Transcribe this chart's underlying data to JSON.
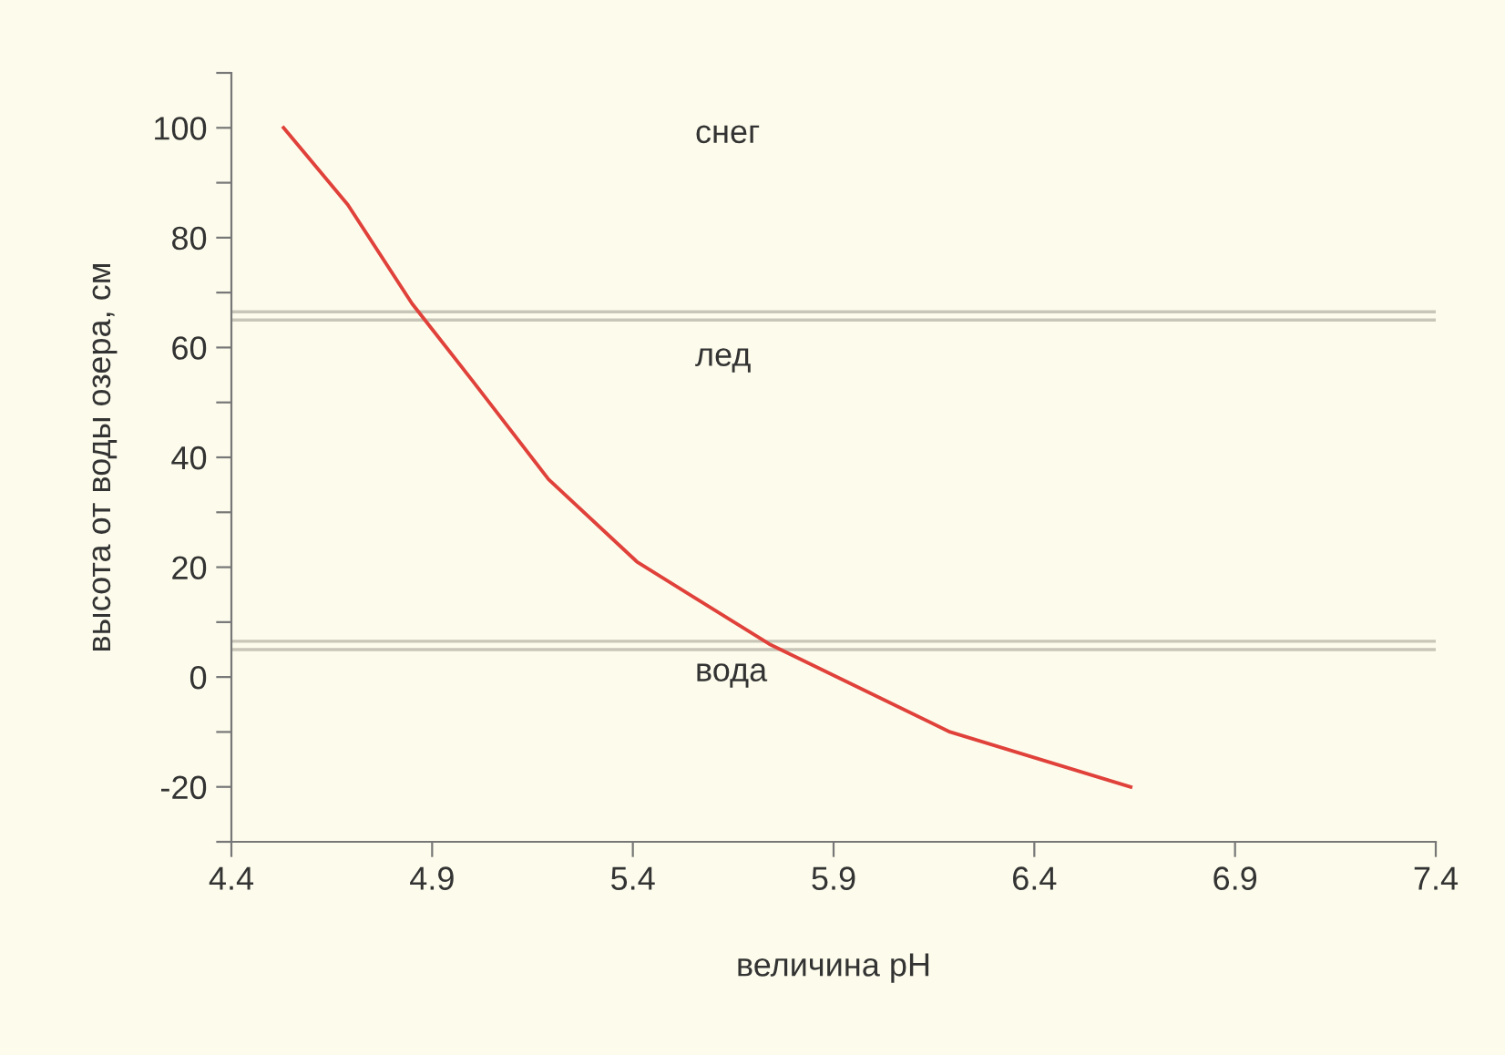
{
  "chart_data": {
    "type": "line",
    "xlabel": "величина pH",
    "ylabel": "высота от воды озера, см",
    "x": [
      4.53,
      4.69,
      4.85,
      5.0,
      5.19,
      5.41,
      5.74,
      6.19,
      6.64
    ],
    "series": [
      {
        "color": "#e0413a",
        "values": [
          100,
          86,
          68,
          54,
          36,
          21,
          6,
          -10,
          -20
        ]
      }
    ],
    "xlim": [
      4.4,
      7.4
    ],
    "xticks": [
      4.4,
      4.9,
      5.4,
      5.9,
      6.4,
      6.9,
      7.4
    ],
    "ylim": [
      -30,
      110
    ],
    "yticks": [
      {
        "value": -30,
        "label": null
      },
      -20,
      {
        "value": -10,
        "label": null
      },
      0,
      {
        "value": 10,
        "label": null
      },
      20,
      {
        "value": 30,
        "label": null
      },
      40,
      {
        "value": 50,
        "label": null
      },
      60,
      {
        "value": 70,
        "label": null
      },
      80,
      {
        "value": 90,
        "label": null
      },
      100,
      {
        "value": 110,
        "label": null
      }
    ],
    "ref_lines": [
      {
        "axis": "y",
        "value": 66.5,
        "color": "#c8c6b8"
      },
      {
        "axis": "y",
        "value": 65,
        "color": "#c8c6b8"
      },
      {
        "axis": "y",
        "value": 6.5,
        "color": "#c8c6b8"
      },
      {
        "axis": "y",
        "value": 5,
        "color": "#c8c6b8"
      }
    ],
    "annotations": [
      "снег",
      "лед",
      "вода"
    ],
    "grid": false,
    "legend": false,
    "marker": "none",
    "line_style": "solid"
  }
}
